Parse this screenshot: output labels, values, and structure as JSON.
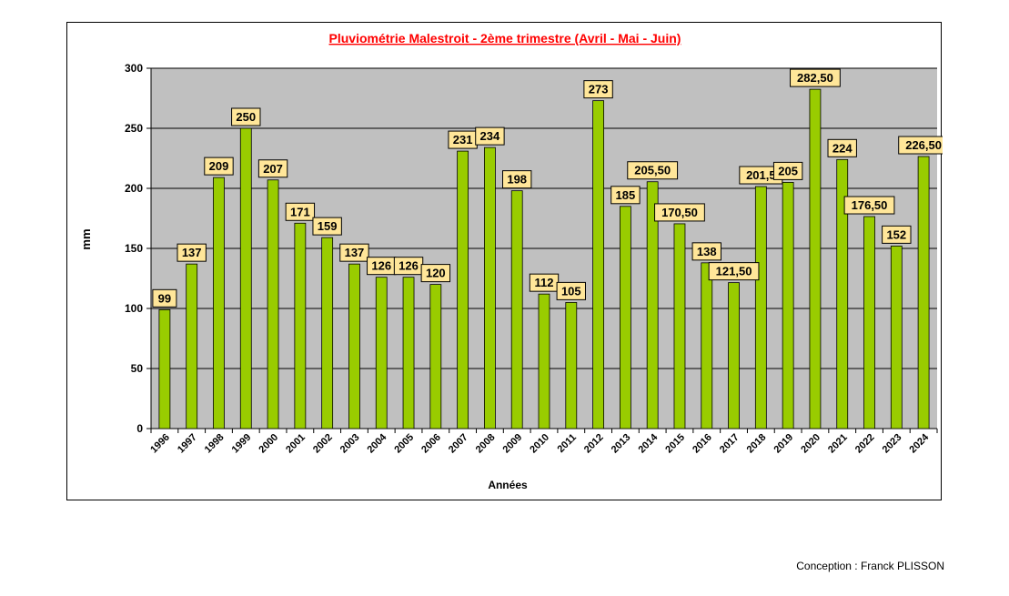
{
  "credit": "Conception : Franck PLISSON",
  "colors": {
    "bar": "#99CC00",
    "bar_edge": "#000000",
    "plot_bg": "#C0C0C0",
    "label_bg": "#FFE699",
    "title": "#FF0000"
  },
  "chart_data": {
    "type": "bar",
    "title": "Pluviométrie Malestroit - 2ème trimestre (Avril - Mai - Juin)",
    "xlabel": "Années",
    "ylabel": "mm",
    "ylim": [
      0,
      300
    ],
    "yticks": [
      "0",
      "50",
      "100",
      "150",
      "200",
      "250",
      "300"
    ],
    "grid": true,
    "categories": [
      "1996",
      "1997",
      "1998",
      "1999",
      "2000",
      "2001",
      "2002",
      "2003",
      "2004",
      "2005",
      "2006",
      "2007",
      "2008",
      "2009",
      "2010",
      "2011",
      "2012",
      "2013",
      "2014",
      "2015",
      "2016",
      "2017",
      "2018",
      "2019",
      "2020",
      "2021",
      "2022",
      "2023",
      "2024"
    ],
    "values": [
      99,
      137,
      209,
      250,
      207,
      171,
      159,
      137,
      126,
      126,
      120,
      231,
      234,
      198,
      112,
      105,
      273,
      185,
      205.5,
      170.5,
      138,
      121.5,
      201.5,
      205,
      282.5,
      224,
      176.5,
      152,
      226.5
    ],
    "data_labels": [
      "99",
      "137",
      "209",
      "250",
      "207",
      "171",
      "159",
      "137",
      "126",
      "126",
      "120",
      "231",
      "234",
      "198",
      "112",
      "105",
      "273",
      "185",
      "205,50",
      "170,50",
      "138",
      "121,50",
      "201,5",
      "205",
      "282,50",
      "224",
      "176,50",
      "152",
      "226,50"
    ]
  }
}
